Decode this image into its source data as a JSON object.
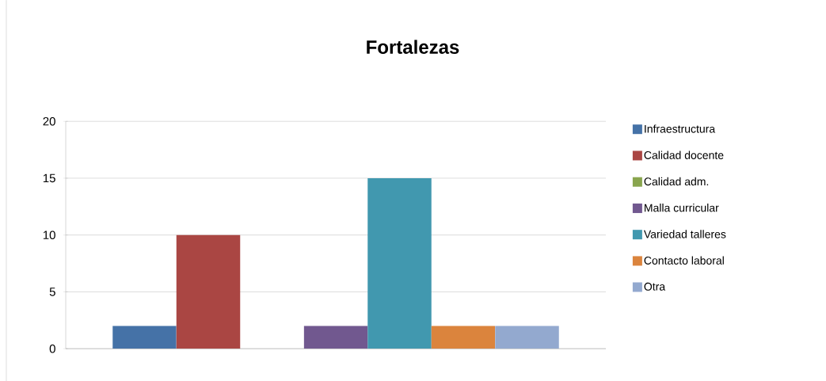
{
  "chart_data": {
    "type": "bar",
    "title": "Fortalezas",
    "categories": [
      null
    ],
    "series": [
      {
        "name": "Infraestructura",
        "color": "#4572a7",
        "values": [
          2
        ]
      },
      {
        "name": "Calidad docente",
        "color": "#aa4643",
        "values": [
          10
        ]
      },
      {
        "name": "Calidad adm.",
        "color": "#89a54e",
        "values": [
          0
        ]
      },
      {
        "name": "Malla curricular",
        "color": "#71588f",
        "values": [
          2
        ]
      },
      {
        "name": "Variedad talleres",
        "color": "#4198af",
        "values": [
          15
        ]
      },
      {
        "name": "Contacto laboral",
        "color": "#db843d",
        "values": [
          2
        ]
      },
      {
        "name": "Otra",
        "color": "#93a9cf",
        "values": [
          2
        ]
      }
    ],
    "ylim": [
      0,
      20
    ],
    "yticks": [
      0,
      5,
      10,
      15,
      20
    ],
    "grid": "y",
    "legend": "right"
  }
}
